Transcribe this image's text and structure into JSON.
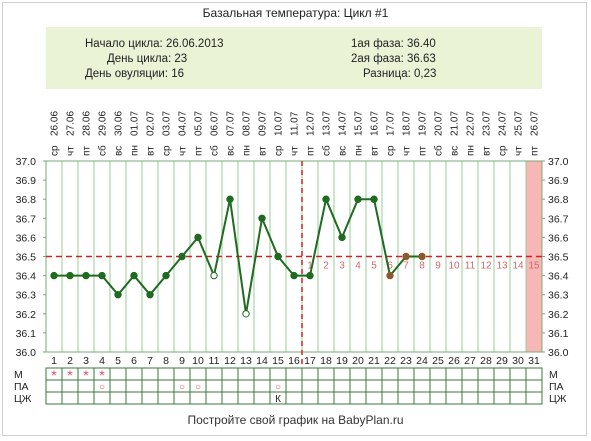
{
  "title": "Базальная температура: Цикл #1",
  "info": {
    "left": [
      {
        "label": "Начало цикла:",
        "value": "26.06.2013"
      },
      {
        "label": "День цикла:",
        "value": "23"
      },
      {
        "label": "День овуляции:",
        "value": "16"
      }
    ],
    "right": [
      {
        "label": "1ая фаза:",
        "value": "36.40"
      },
      {
        "label": "2ая фаза:",
        "value": "36.63"
      },
      {
        "label": "Разница:",
        "value": "0,23"
      }
    ]
  },
  "footer": "Постройте свой график на BabyPlan.ru",
  "colors": {
    "line": "#1f6b1f",
    "coverline": "#cc2222",
    "ovulation": "#cc2222",
    "future_band": "#f7b7b7",
    "grid": "#9acb9a",
    "info_bg": "#eaf3d6",
    "marker_red": "#e05050"
  },
  "chart_data": {
    "type": "line",
    "title": "Базальная температура: Цикл #1",
    "xlabel": "",
    "ylabel": "",
    "ylim": [
      36.0,
      37.0
    ],
    "y_ticks": [
      "37.0",
      "36.9",
      "36.8",
      "36.7",
      "36.6",
      "36.5",
      "36.4",
      "36.3",
      "36.2",
      "36.1",
      "36.0"
    ],
    "x": [
      1,
      2,
      3,
      4,
      5,
      6,
      7,
      8,
      9,
      10,
      11,
      12,
      13,
      14,
      15,
      16,
      17,
      18,
      19,
      20,
      21,
      22,
      23,
      24,
      25,
      26,
      27,
      28,
      29,
      30,
      31
    ],
    "weekdays": [
      "ср",
      "чт",
      "пт",
      "сб",
      "вс",
      "пн",
      "вт",
      "ср",
      "чт",
      "пт",
      "сб",
      "вс",
      "пн",
      "вт",
      "ср",
      "чт",
      "пт",
      "сб",
      "вс",
      "пн",
      "вт",
      "ср",
      "чт",
      "пт",
      "сб",
      "вс",
      "пн",
      "вт",
      "ср",
      "чт",
      "пт"
    ],
    "dates": [
      "26.06",
      "27.06",
      "28.06",
      "29.06",
      "30.06",
      "01.07",
      "02.07",
      "03.07",
      "04.07",
      "05.07",
      "06.07",
      "07.07",
      "08.07",
      "09.07",
      "10.07",
      "11.07",
      "12.07",
      "13.07",
      "14.07",
      "15.07",
      "16.07",
      "17.07",
      "18.07",
      "19.07",
      "20.07",
      "21.07",
      "22.07",
      "23.07",
      "24.07",
      "25.07",
      "26.07"
    ],
    "series": [
      {
        "values": [
          36.4,
          36.4,
          36.4,
          36.4,
          36.3,
          36.4,
          36.3,
          36.4,
          36.5,
          36.6,
          36.4,
          36.8,
          36.2,
          36.7,
          36.5,
          36.4,
          36.4,
          36.8,
          36.6,
          36.8,
          36.8,
          36.4,
          36.5,
          36.5,
          null,
          null,
          null,
          null,
          null,
          null,
          null
        ]
      }
    ],
    "hollow_points": [
      11,
      13
    ],
    "coverline": 36.5,
    "ovulation_day": 16,
    "phase2_numbers": [
      "1",
      "2",
      "3",
      "4",
      "5",
      "6",
      "7",
      "8",
      "9",
      "10",
      "11",
      "12",
      "13",
      "14",
      "15"
    ],
    "future_day": 31,
    "moon_day": 11,
    "rows": [
      {
        "label": "М",
        "marks": [
          {
            "day": 1,
            "symbol": "*"
          },
          {
            "day": 2,
            "symbol": "*"
          },
          {
            "day": 3,
            "symbol": "*"
          },
          {
            "day": 4,
            "symbol": "*"
          }
        ]
      },
      {
        "label": "ПА",
        "marks": [
          {
            "day": 4,
            "symbol": "○"
          },
          {
            "day": 9,
            "symbol": "○"
          },
          {
            "day": 10,
            "symbol": "○"
          },
          {
            "day": 15,
            "symbol": "○"
          }
        ]
      },
      {
        "label": "ЦЖ",
        "marks": [
          {
            "day": 15,
            "symbol": "К"
          }
        ]
      }
    ]
  }
}
